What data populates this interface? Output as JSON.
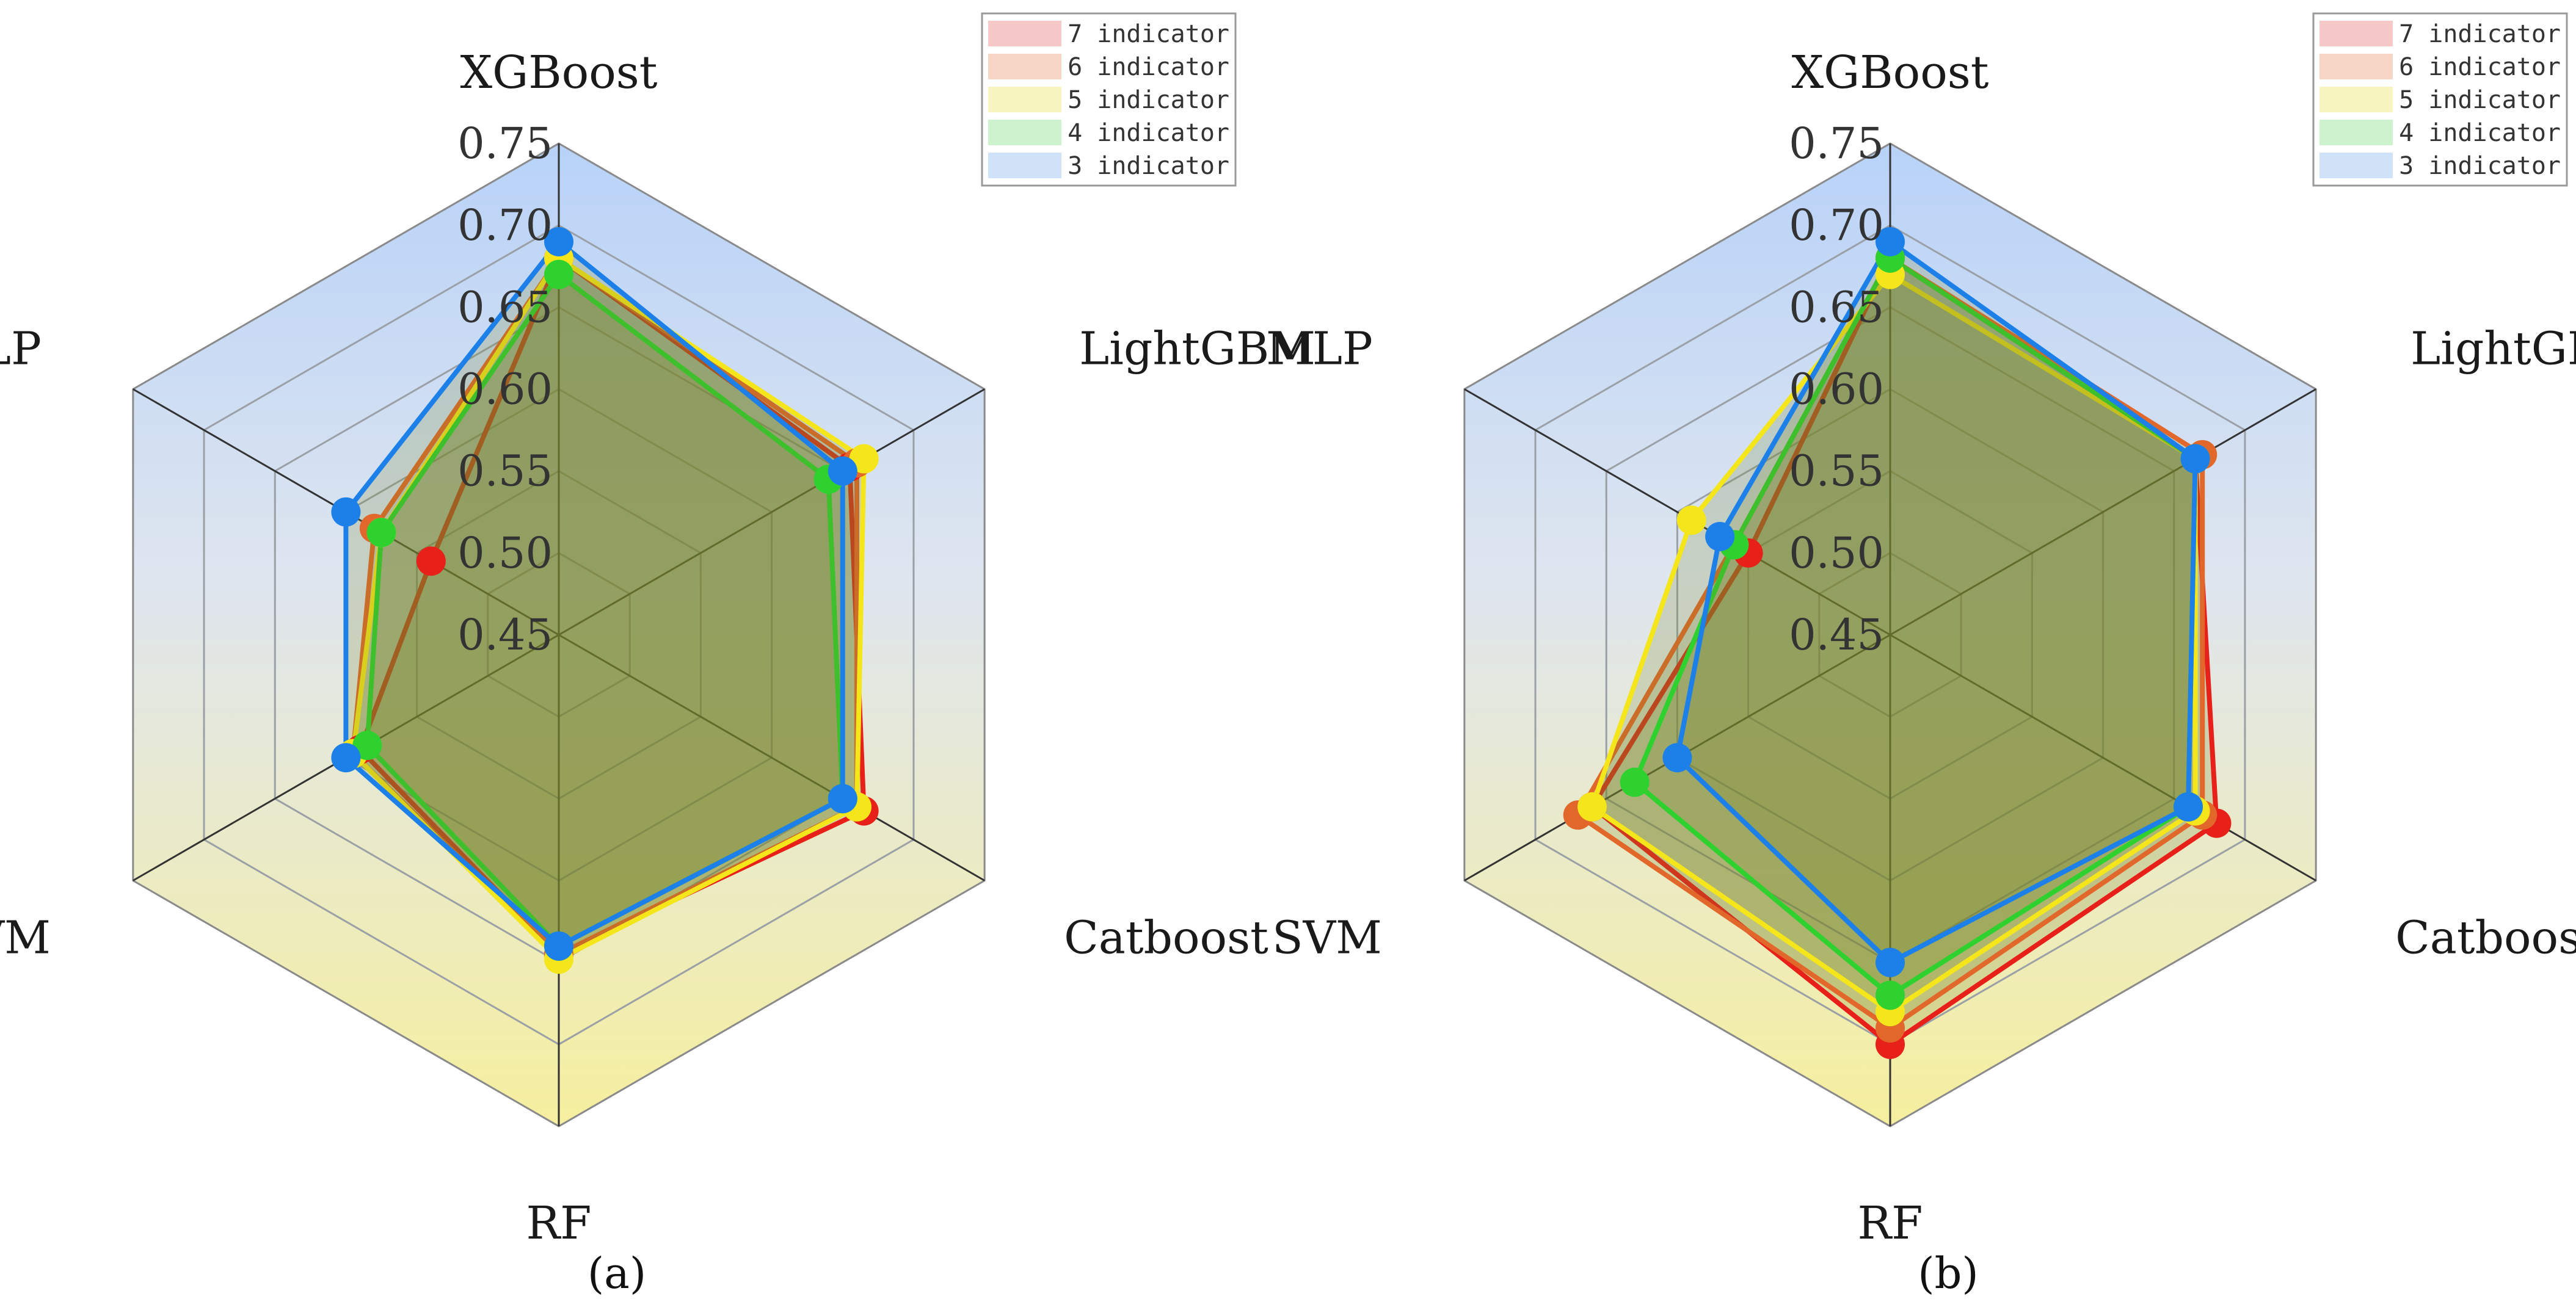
{
  "chart_data": [
    {
      "type": "radar",
      "panel_label": "(a)",
      "axes": [
        "XGBoost",
        "LightGBM",
        "Catboost",
        "RF",
        "SVM",
        "MLP"
      ],
      "rlim": [
        0.45,
        0.75
      ],
      "ticks": [
        "0.45",
        "0.50",
        "0.55",
        "0.60",
        "0.65",
        "0.70",
        "0.75"
      ],
      "tick_values": [
        0.45,
        0.5,
        0.55,
        0.6,
        0.65,
        0.7,
        0.75
      ],
      "legend_position": "top-right",
      "series": [
        {
          "name": "7 indicator",
          "color": "#e8201a",
          "fill": "#f6c9c8",
          "values": [
            0.68,
            0.655,
            0.665,
            0.645,
            0.59,
            0.54
          ]
        },
        {
          "name": "6 indicator",
          "color": "#e2672a",
          "fill": "#f8d6c6",
          "values": [
            0.68,
            0.66,
            0.66,
            0.645,
            0.595,
            0.58
          ]
        },
        {
          "name": "5 indicator",
          "color": "#f4e61a",
          "fill": "#f8f4c0",
          "values": [
            0.68,
            0.665,
            0.66,
            0.648,
            0.595,
            0.575
          ]
        },
        {
          "name": "4 indicator",
          "color": "#2fd12f",
          "fill": "#cdf2cd",
          "values": [
            0.67,
            0.64,
            0.65,
            0.64,
            0.585,
            0.575
          ]
        },
        {
          "name": "3 indicator",
          "color": "#1c80e8",
          "fill": "#cfe2f8",
          "values": [
            0.69,
            0.65,
            0.65,
            0.64,
            0.6,
            0.6
          ]
        }
      ]
    },
    {
      "type": "radar",
      "panel_label": "(b)",
      "axes": [
        "XGBoost",
        "LightGBM",
        "Catboost",
        "RF",
        "SVM",
        "MLP"
      ],
      "rlim": [
        0.45,
        0.75
      ],
      "ticks": [
        "0.45",
        "0.50",
        "0.55",
        "0.60",
        "0.65",
        "0.70",
        "0.75"
      ],
      "tick_values": [
        0.45,
        0.5,
        0.55,
        0.6,
        0.65,
        0.7,
        0.75
      ],
      "legend_position": "top-right",
      "series": [
        {
          "name": "7 indicator",
          "color": "#e8201a",
          "fill": "#f6c9c8",
          "values": [
            0.68,
            0.665,
            0.68,
            0.7,
            0.66,
            0.55
          ]
        },
        {
          "name": "6 indicator",
          "color": "#e2672a",
          "fill": "#f8d6c6",
          "values": [
            0.68,
            0.67,
            0.67,
            0.69,
            0.67,
            0.56
          ]
        },
        {
          "name": "5 indicator",
          "color": "#f4e61a",
          "fill": "#f8f4c0",
          "values": [
            0.67,
            0.665,
            0.665,
            0.68,
            0.66,
            0.59
          ]
        },
        {
          "name": "4 indicator",
          "color": "#2fd12f",
          "fill": "#cdf2cd",
          "values": [
            0.68,
            0.665,
            0.66,
            0.67,
            0.63,
            0.56
          ]
        },
        {
          "name": "3 indicator",
          "color": "#1c80e8",
          "fill": "#cfe2f8",
          "values": [
            0.69,
            0.665,
            0.66,
            0.65,
            0.6,
            0.57
          ]
        }
      ]
    }
  ]
}
